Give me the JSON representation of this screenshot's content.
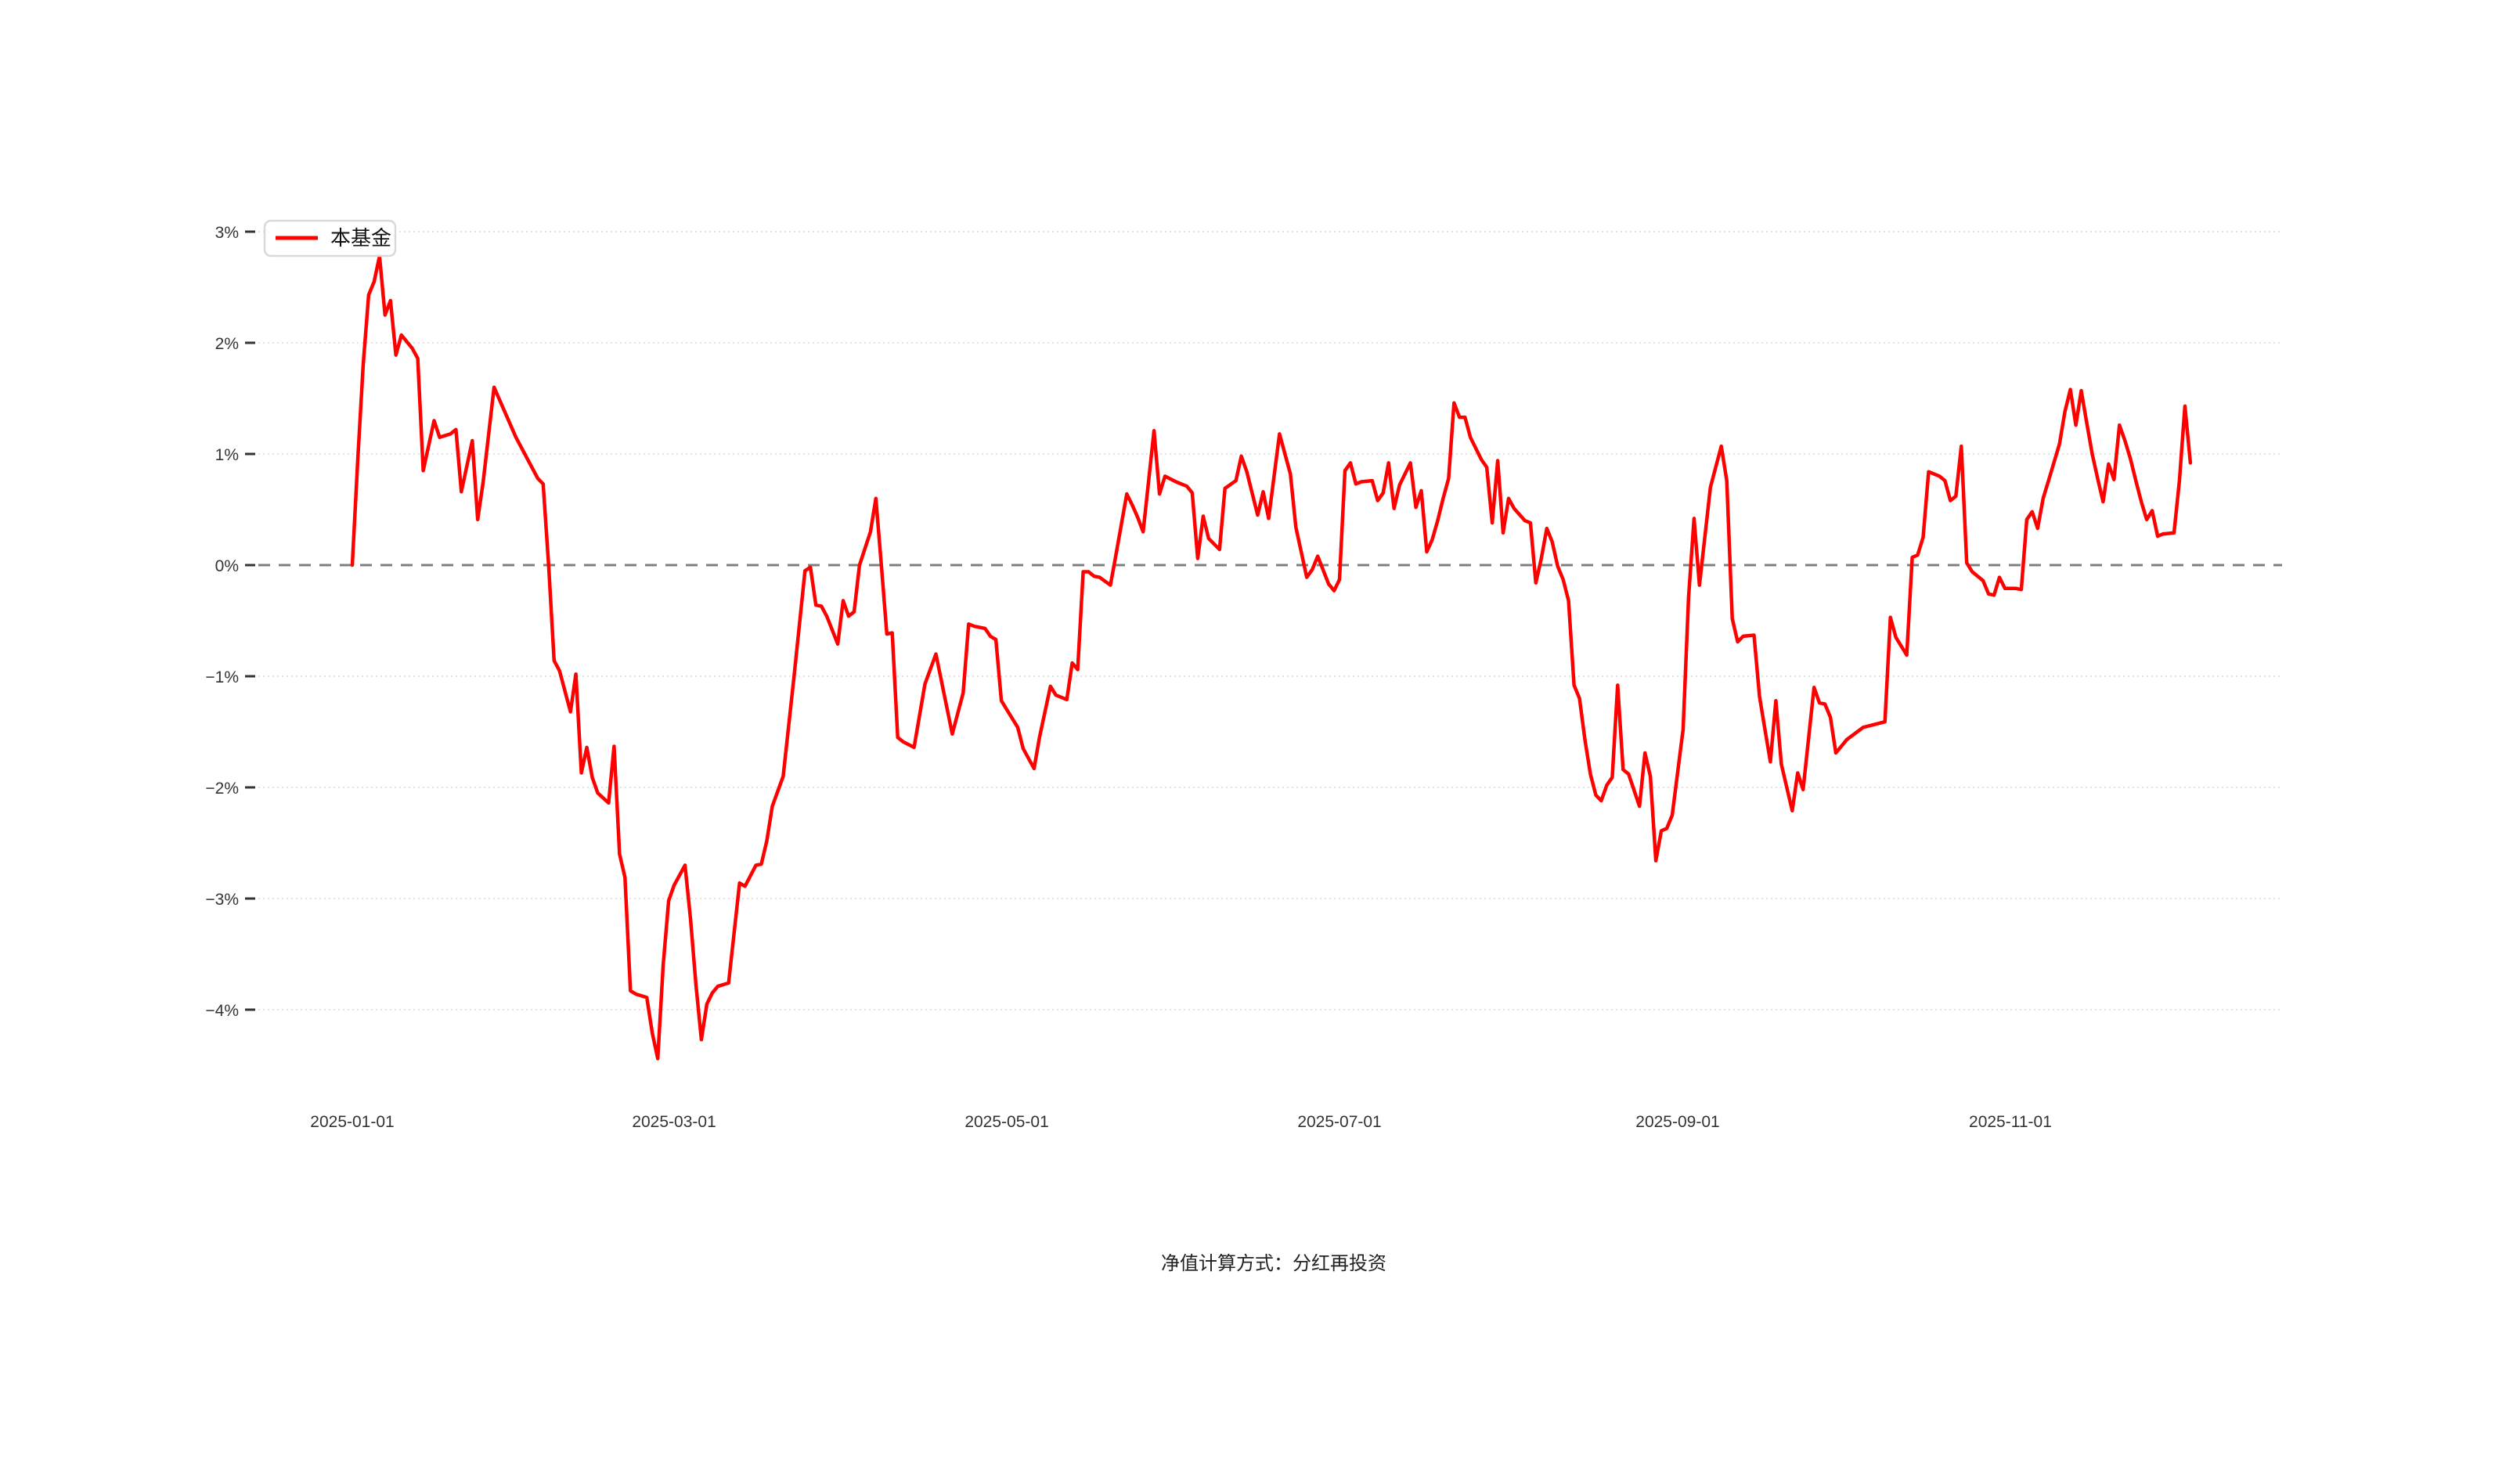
{
  "page": {
    "background": "#ffffff"
  },
  "legend": {
    "label": "本基金",
    "line_color": "#ff0000"
  },
  "footer": {
    "text": "净值计算方式：分红再投资"
  },
  "chart_data": {
    "type": "line",
    "title": "",
    "xlabel": "",
    "ylabel": "",
    "value_unit": "%",
    "day_zero": "2025-01-01",
    "ylim": [
      -4.5,
      3.2
    ],
    "grid": true,
    "grid_color": "#e2e2e2",
    "zero_line": {
      "style": "dashed",
      "color": "#7f7f7f"
    },
    "legend_position": "top-left",
    "x_ticks": [
      {
        "label": "2025-01-01",
        "day": 0
      },
      {
        "label": "2025-03-01",
        "day": 59
      },
      {
        "label": "2025-05-01",
        "day": 120
      },
      {
        "label": "2025-07-01",
        "day": 181
      },
      {
        "label": "2025-09-01",
        "day": 243
      },
      {
        "label": "2025-11-01",
        "day": 304
      }
    ],
    "y_ticks": [
      {
        "label": "3%",
        "value": 3
      },
      {
        "label": "2%",
        "value": 2
      },
      {
        "label": "1%",
        "value": 1
      },
      {
        "label": "0%",
        "value": 0
      },
      {
        "label": "−1%",
        "value": -1
      },
      {
        "label": "−2%",
        "value": -2
      },
      {
        "label": "−3%",
        "value": -3
      },
      {
        "label": "−4%",
        "value": -4
      }
    ],
    "series": [
      {
        "name": "本基金",
        "color": "#ff0000",
        "points": [
          [
            0,
            0
          ],
          [
            1,
            0.95
          ],
          [
            2,
            1.8
          ],
          [
            3,
            2.43
          ],
          [
            4,
            2.55
          ],
          [
            5,
            2.78
          ],
          [
            6,
            2.25
          ],
          [
            7,
            2.38
          ],
          [
            8,
            1.89
          ],
          [
            9,
            2.07
          ],
          [
            11,
            1.95
          ],
          [
            12,
            1.86
          ],
          [
            13,
            0.85
          ],
          [
            15,
            1.3
          ],
          [
            16,
            1.15
          ],
          [
            18,
            1.18
          ],
          [
            19,
            1.22
          ],
          [
            20,
            0.66
          ],
          [
            22,
            1.12
          ],
          [
            23,
            0.41
          ],
          [
            24,
            0.75
          ],
          [
            26,
            1.6
          ],
          [
            30,
            1.15
          ],
          [
            34,
            0.78
          ],
          [
            35,
            0.73
          ],
          [
            36,
            0
          ],
          [
            37,
            -0.86
          ],
          [
            38,
            -0.95
          ],
          [
            40,
            -1.32
          ],
          [
            41,
            -0.98
          ],
          [
            42,
            -1.87
          ],
          [
            43,
            -1.64
          ],
          [
            44,
            -1.91
          ],
          [
            45,
            -2.05
          ],
          [
            47,
            -2.14
          ],
          [
            48,
            -1.63
          ],
          [
            49,
            -2.6
          ],
          [
            50,
            -2.81
          ],
          [
            51,
            -3.83
          ],
          [
            52,
            -3.86
          ],
          [
            54,
            -3.89
          ],
          [
            55,
            -4.21
          ],
          [
            56,
            -4.44
          ],
          [
            57,
            -3.6
          ],
          [
            58,
            -3.02
          ],
          [
            59,
            -2.88
          ],
          [
            61,
            -2.7
          ],
          [
            62,
            -3.18
          ],
          [
            63,
            -3.77
          ],
          [
            64,
            -4.27
          ],
          [
            65,
            -3.95
          ],
          [
            66,
            -3.85
          ],
          [
            67,
            -3.79
          ],
          [
            69,
            -3.76
          ],
          [
            71,
            -2.86
          ],
          [
            72,
            -2.89
          ],
          [
            74,
            -2.7
          ],
          [
            75,
            -2.69
          ],
          [
            76,
            -2.48
          ],
          [
            77,
            -2.17
          ],
          [
            79,
            -1.9
          ],
          [
            81,
            -1.0
          ],
          [
            83,
            -0.05
          ],
          [
            84,
            -0.02
          ],
          [
            85,
            -0.36
          ],
          [
            86,
            -0.37
          ],
          [
            87,
            -0.46
          ],
          [
            89,
            -0.71
          ],
          [
            90,
            -0.32
          ],
          [
            91,
            -0.46
          ],
          [
            92,
            -0.42
          ],
          [
            93,
            0
          ],
          [
            95,
            0.3
          ],
          [
            96,
            0.6
          ],
          [
            97,
            0
          ],
          [
            98,
            -0.62
          ],
          [
            99,
            -0.61
          ],
          [
            100,
            -1.55
          ],
          [
            101,
            -1.59
          ],
          [
            103,
            -1.64
          ],
          [
            105,
            -1.07
          ],
          [
            107,
            -0.8
          ],
          [
            110,
            -1.52
          ],
          [
            112,
            -1.15
          ],
          [
            113,
            -0.53
          ],
          [
            114,
            -0.55
          ],
          [
            116,
            -0.57
          ],
          [
            117,
            -0.64
          ],
          [
            118,
            -0.67
          ],
          [
            119,
            -1.22
          ],
          [
            120,
            -1.3
          ],
          [
            122,
            -1.46
          ],
          [
            123,
            -1.65
          ],
          [
            125,
            -1.83
          ],
          [
            126,
            -1.55
          ],
          [
            128,
            -1.09
          ],
          [
            129,
            -1.17
          ],
          [
            131,
            -1.21
          ],
          [
            132,
            -0.88
          ],
          [
            133,
            -0.94
          ],
          [
            134,
            -0.06
          ],
          [
            135,
            -0.06
          ],
          [
            136,
            -0.1
          ],
          [
            137,
            -0.11
          ],
          [
            139,
            -0.18
          ],
          [
            140,
            0.09
          ],
          [
            142,
            0.64
          ],
          [
            143,
            0.54
          ],
          [
            144,
            0.43
          ],
          [
            145,
            0.3
          ],
          [
            147,
            1.21
          ],
          [
            148,
            0.64
          ],
          [
            149,
            0.8
          ],
          [
            151,
            0.75
          ],
          [
            153,
            0.71
          ],
          [
            154,
            0.65
          ],
          [
            155,
            0.06
          ],
          [
            156,
            0.44
          ],
          [
            157,
            0.24
          ],
          [
            159,
            0.14
          ],
          [
            160,
            0.69
          ],
          [
            162,
            0.76
          ],
          [
            163,
            0.98
          ],
          [
            164,
            0.84
          ],
          [
            166,
            0.45
          ],
          [
            167,
            0.66
          ],
          [
            168,
            0.42
          ],
          [
            170,
            1.18
          ],
          [
            172,
            0.82
          ],
          [
            173,
            0.34
          ],
          [
            175,
            -0.11
          ],
          [
            176,
            -0.04
          ],
          [
            177,
            0.08
          ],
          [
            179,
            -0.17
          ],
          [
            180,
            -0.23
          ],
          [
            181,
            -0.13
          ],
          [
            182,
            0.85
          ],
          [
            183,
            0.92
          ],
          [
            184,
            0.73
          ],
          [
            185,
            0.75
          ],
          [
            187,
            0.76
          ],
          [
            188,
            0.58
          ],
          [
            189,
            0.65
          ],
          [
            190,
            0.92
          ],
          [
            191,
            0.51
          ],
          [
            192,
            0.72
          ],
          [
            194,
            0.92
          ],
          [
            195,
            0.52
          ],
          [
            196,
            0.67
          ],
          [
            197,
            0.12
          ],
          [
            198,
            0.23
          ],
          [
            199,
            0.4
          ],
          [
            200,
            0.6
          ],
          [
            201,
            0.78
          ],
          [
            202,
            1.46
          ],
          [
            203,
            1.33
          ],
          [
            204,
            1.33
          ],
          [
            205,
            1.15
          ],
          [
            207,
            0.95
          ],
          [
            208,
            0.88
          ],
          [
            209,
            0.38
          ],
          [
            210,
            0.94
          ],
          [
            211,
            0.29
          ],
          [
            212,
            0.6
          ],
          [
            213,
            0.51
          ],
          [
            215,
            0.4
          ],
          [
            216,
            0.38
          ],
          [
            217,
            -0.16
          ],
          [
            218,
            0.06
          ],
          [
            219,
            0.33
          ],
          [
            220,
            0.21
          ],
          [
            221,
            -0.01
          ],
          [
            222,
            -0.13
          ],
          [
            223,
            -0.32
          ],
          [
            224,
            -1.08
          ],
          [
            225,
            -1.2
          ],
          [
            226,
            -1.57
          ],
          [
            227,
            -1.88
          ],
          [
            228,
            -2.07
          ],
          [
            229,
            -2.12
          ],
          [
            230,
            -1.98
          ],
          [
            231,
            -1.91
          ],
          [
            232,
            -1.08
          ],
          [
            233,
            -1.84
          ],
          [
            234,
            -1.88
          ],
          [
            236,
            -2.17
          ],
          [
            237,
            -1.69
          ],
          [
            238,
            -1.9
          ],
          [
            239,
            -2.66
          ],
          [
            240,
            -2.39
          ],
          [
            241,
            -2.37
          ],
          [
            242,
            -2.25
          ],
          [
            244,
            -1.48
          ],
          [
            245,
            -0.29
          ],
          [
            246,
            0.42
          ],
          [
            247,
            -0.18
          ],
          [
            249,
            0.7
          ],
          [
            251,
            1.07
          ],
          [
            252,
            0.76
          ],
          [
            253,
            -0.48
          ],
          [
            254,
            -0.69
          ],
          [
            255,
            -0.64
          ],
          [
            257,
            -0.63
          ],
          [
            258,
            -1.18
          ],
          [
            259,
            -1.48
          ],
          [
            260,
            -1.77
          ],
          [
            261,
            -1.22
          ],
          [
            262,
            -1.79
          ],
          [
            264,
            -2.21
          ],
          [
            265,
            -1.87
          ],
          [
            266,
            -2.02
          ],
          [
            268,
            -1.1
          ],
          [
            269,
            -1.24
          ],
          [
            270,
            -1.25
          ],
          [
            271,
            -1.37
          ],
          [
            272,
            -1.69
          ],
          [
            274,
            -1.57
          ],
          [
            277,
            -1.46
          ],
          [
            281,
            -1.41
          ],
          [
            282,
            -0.47
          ],
          [
            283,
            -0.65
          ],
          [
            285,
            -0.81
          ],
          [
            286,
            0.07
          ],
          [
            287,
            0.09
          ],
          [
            288,
            0.25
          ],
          [
            289,
            0.84
          ],
          [
            291,
            0.8
          ],
          [
            292,
            0.76
          ],
          [
            293,
            0.58
          ],
          [
            294,
            0.62
          ],
          [
            295,
            1.07
          ],
          [
            296,
            0.02
          ],
          [
            297,
            -0.06
          ],
          [
            299,
            -0.14
          ],
          [
            300,
            -0.26
          ],
          [
            301,
            -0.27
          ],
          [
            302,
            -0.11
          ],
          [
            303,
            -0.21
          ],
          [
            305,
            -0.21
          ],
          [
            306,
            -0.22
          ],
          [
            307,
            0.41
          ],
          [
            308,
            0.48
          ],
          [
            309,
            0.33
          ],
          [
            310,
            0.6
          ],
          [
            311,
            0.76
          ],
          [
            313,
            1.09
          ],
          [
            314,
            1.38
          ],
          [
            315,
            1.58
          ],
          [
            316,
            1.26
          ],
          [
            317,
            1.57
          ],
          [
            318,
            1.28
          ],
          [
            319,
            1.0
          ],
          [
            320,
            0.78
          ],
          [
            321,
            0.57
          ],
          [
            322,
            0.91
          ],
          [
            323,
            0.77
          ],
          [
            324,
            1.26
          ],
          [
            325,
            1.12
          ],
          [
            326,
            0.96
          ],
          [
            327,
            0.76
          ],
          [
            328,
            0.57
          ],
          [
            329,
            0.41
          ],
          [
            330,
            0.49
          ],
          [
            331,
            0.26
          ],
          [
            332,
            0.28
          ],
          [
            334,
            0.29
          ],
          [
            335,
            0.76
          ],
          [
            336,
            1.43
          ],
          [
            337,
            0.92
          ]
        ]
      }
    ]
  }
}
